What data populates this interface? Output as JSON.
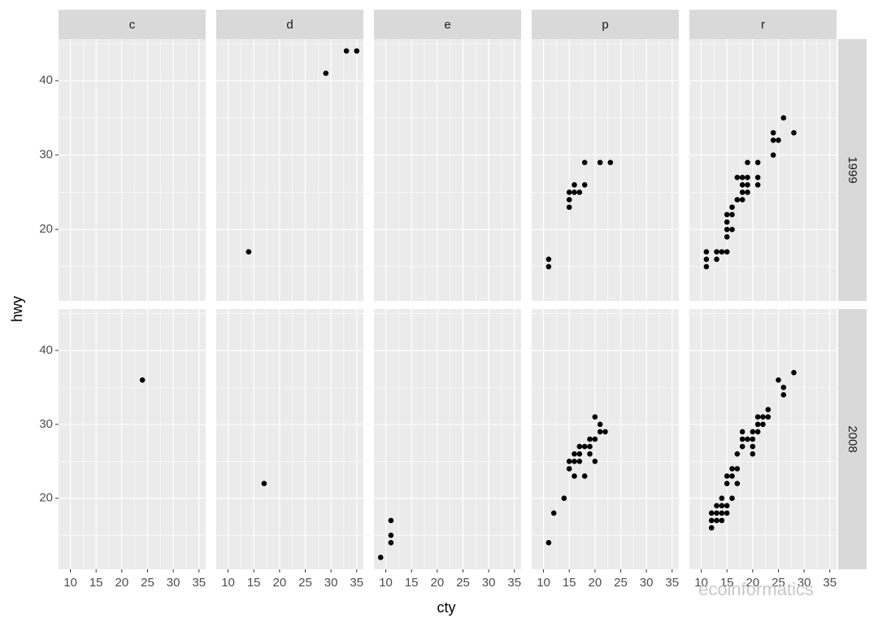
{
  "chart_data": {
    "type": "scatter",
    "xlabel": "cty",
    "ylabel": "hwy",
    "columns": [
      "c",
      "d",
      "e",
      "p",
      "r"
    ],
    "rows": [
      "1999",
      "2008"
    ],
    "xlim": [
      7.7,
      36.3
    ],
    "ylim": [
      10.4,
      45.6
    ],
    "xticks": [
      10,
      15,
      20,
      25,
      30,
      35
    ],
    "yticks": [
      20,
      30,
      40
    ],
    "grid": true,
    "color": "#000000",
    "watermark": "ecoinformatics",
    "panels": [
      {
        "x": [],
        "y": []
      },
      {
        "x": [
          14,
          29,
          33,
          35
        ],
        "y": [
          17,
          41,
          44,
          44
        ]
      },
      {
        "x": [],
        "y": []
      },
      {
        "x": [
          11,
          11,
          15,
          15,
          15,
          16,
          16,
          17,
          18,
          18,
          21,
          23
        ],
        "y": [
          16,
          15,
          23,
          24,
          25,
          26,
          25,
          25,
          26,
          29,
          29,
          29
        ]
      },
      {
        "x": [
          11,
          11,
          11,
          13,
          13,
          14,
          15,
          15,
          15,
          15,
          15,
          16,
          16,
          16,
          17,
          17,
          18,
          18,
          18,
          18,
          19,
          19,
          19,
          19,
          21,
          21,
          21,
          24,
          24,
          24,
          25,
          26,
          28
        ],
        "y": [
          15,
          16,
          17,
          16,
          17,
          17,
          17,
          19,
          20,
          21,
          22,
          20,
          22,
          23,
          24,
          27,
          24,
          25,
          26,
          27,
          25,
          26,
          27,
          29,
          26,
          27,
          29,
          30,
          33,
          32,
          32,
          35,
          33
        ]
      },
      {
        "x": [
          24
        ],
        "y": [
          36
        ]
      },
      {
        "x": [
          17
        ],
        "y": [
          22
        ]
      },
      {
        "x": [
          9,
          11,
          11,
          11
        ],
        "y": [
          12,
          17,
          15,
          14
        ]
      },
      {
        "x": [
          11,
          12,
          14,
          15,
          15,
          16,
          16,
          16,
          17,
          17,
          17,
          18,
          18,
          19,
          19,
          19,
          20,
          20,
          20,
          21,
          21,
          22
        ],
        "y": [
          14,
          18,
          20,
          24,
          25,
          23,
          25,
          26,
          25,
          26,
          27,
          23,
          27,
          26,
          27,
          28,
          25,
          28,
          31,
          29,
          30,
          29
        ]
      },
      {
        "x": [
          12,
          12,
          12,
          13,
          13,
          13,
          14,
          14,
          14,
          14,
          15,
          15,
          15,
          15,
          16,
          16,
          16,
          17,
          17,
          17,
          18,
          18,
          18,
          19,
          20,
          20,
          20,
          20,
          21,
          21,
          21,
          22,
          22,
          23,
          23,
          25,
          26,
          26,
          28
        ],
        "y": [
          16,
          17,
          18,
          17,
          18,
          19,
          17,
          18,
          19,
          20,
          18,
          19,
          22,
          23,
          20,
          23,
          24,
          22,
          24,
          26,
          27,
          28,
          29,
          28,
          26,
          27,
          28,
          29,
          29,
          30,
          31,
          30,
          31,
          31,
          32,
          36,
          34,
          35,
          37
        ]
      }
    ]
  }
}
